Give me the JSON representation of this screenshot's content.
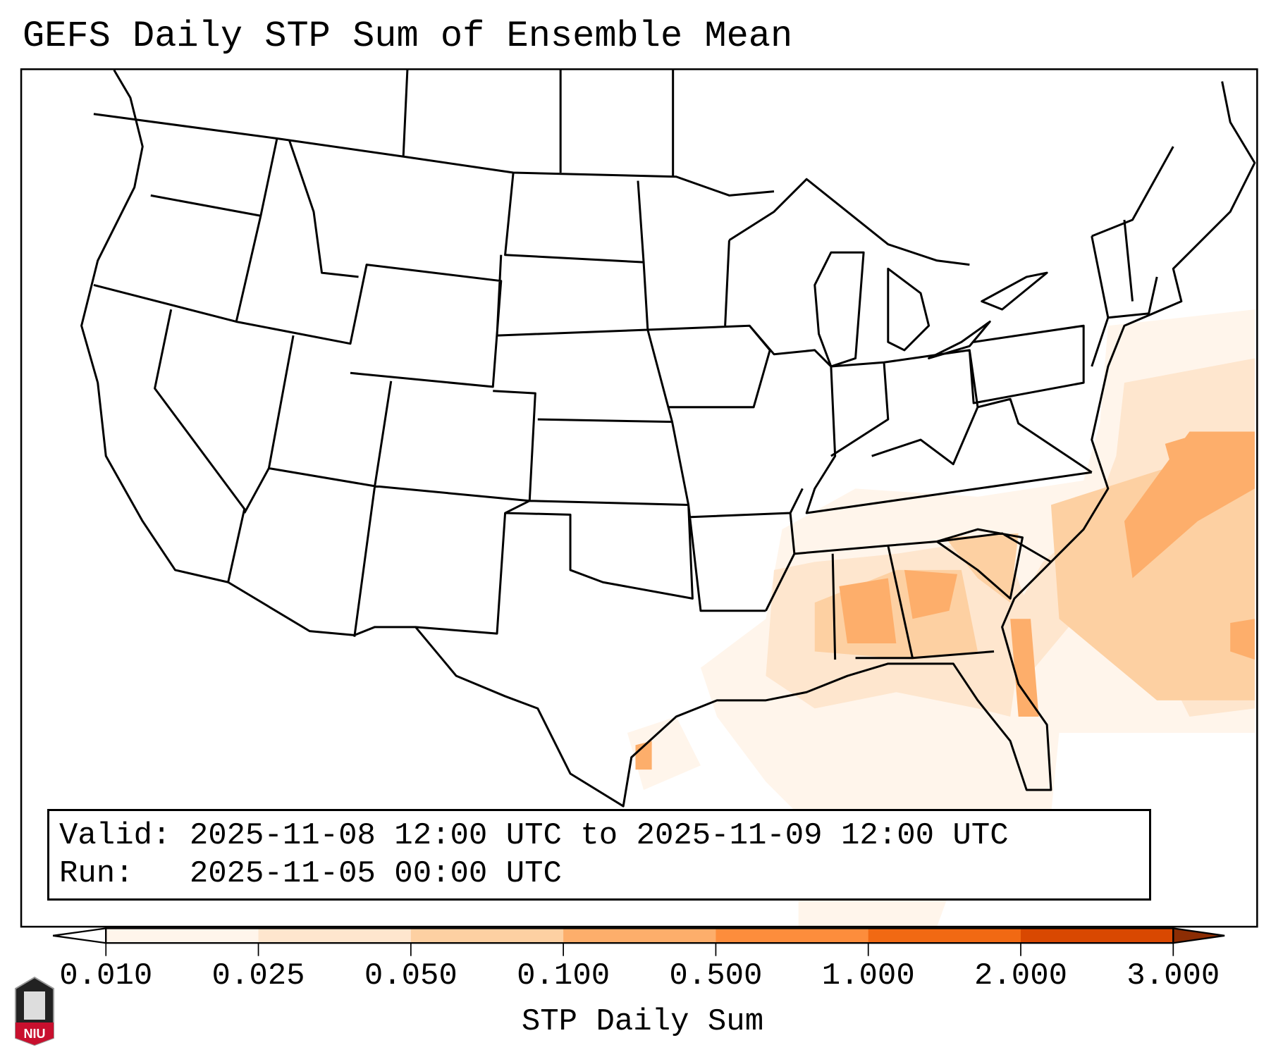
{
  "title": "GEFS Daily STP Sum of Ensemble Mean",
  "info": {
    "valid_label": "Valid:",
    "valid_value": "2025-11-08 12:00 UTC to 2025-11-09 12:00 UTC",
    "run_label": "Run:  ",
    "run_value": "2025-11-05 00:00 UTC"
  },
  "colorbar": {
    "label": "STP Daily Sum",
    "ticks": [
      "0.010",
      "0.025",
      "0.050",
      "0.100",
      "0.500",
      "1.000",
      "2.000",
      "3.000"
    ],
    "colors": [
      "#fff5eb",
      "#fee6ce",
      "#fdd0a2",
      "#fdae6b",
      "#fd8d3c",
      "#f16913",
      "#d94801"
    ],
    "under_color": "#ffffff",
    "over_color": "#8c2d04"
  },
  "logo": {
    "text": "NIU",
    "color": "#c8102e"
  }
}
